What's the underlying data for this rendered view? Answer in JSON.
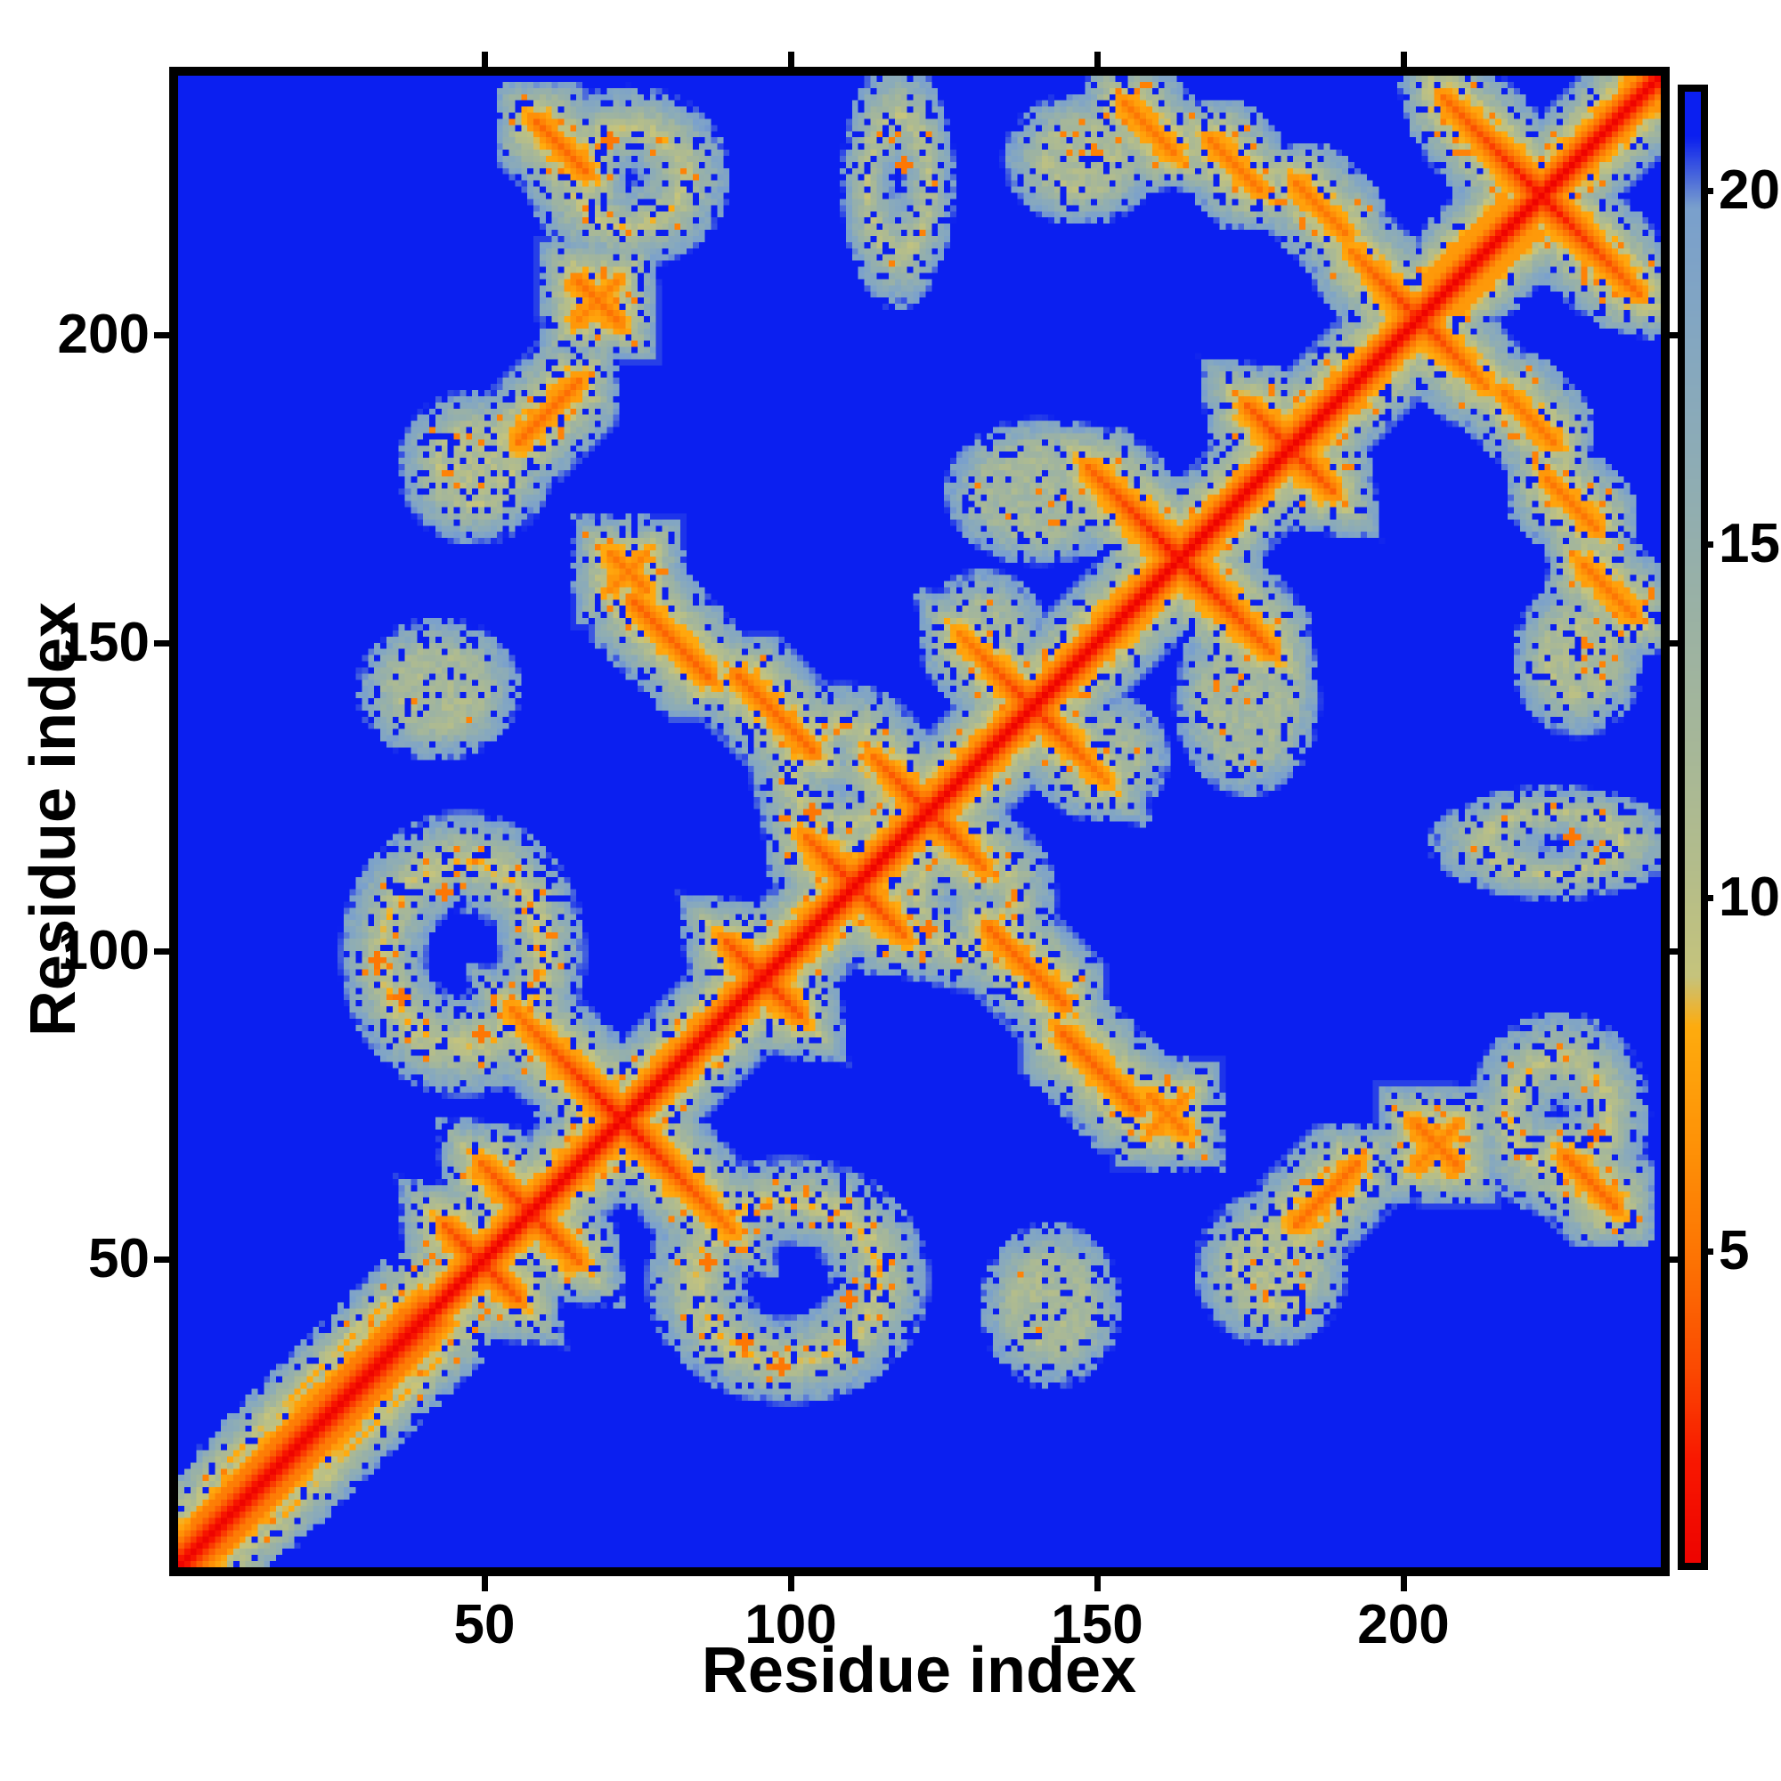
{
  "figure": {
    "xlabel": "Residue index",
    "ylabel": "Residue index",
    "x_ticks": [
      "50",
      "100",
      "150",
      "200"
    ],
    "y_ticks": [
      "50",
      "100",
      "150",
      "200"
    ],
    "colorbar_ticks": [
      "5",
      "10",
      "15",
      "20"
    ]
  },
  "chart_data": {
    "type": "heatmap",
    "title": "",
    "xlabel": "Residue index",
    "ylabel": "Residue index",
    "x_range": [
      1,
      242
    ],
    "y_range": [
      1,
      242
    ],
    "x_ticks": [
      50,
      100,
      150,
      200
    ],
    "y_ticks": [
      50,
      100,
      150,
      200
    ],
    "grid": false,
    "legend_position": "colorbar-right",
    "colorbar": {
      "ticks": [
        5,
        10,
        15,
        20
      ],
      "vmin": 0.8,
      "vmax": 21.4,
      "orientation": "vertical"
    },
    "colormap_stops": [
      [
        0.8,
        "#ee0400"
      ],
      [
        2.2,
        "#f91800"
      ],
      [
        3.5,
        "#fb4a02"
      ],
      [
        5.0,
        "#fd7304"
      ],
      [
        6.5,
        "#fe9007"
      ],
      [
        8.3,
        "#ffac0e"
      ],
      [
        9.0,
        "#c6c47c"
      ],
      [
        10.5,
        "#b4bd8b"
      ],
      [
        12.0,
        "#a8b897"
      ],
      [
        14.0,
        "#9bb2a4"
      ],
      [
        16.0,
        "#8fadb4"
      ],
      [
        18.0,
        "#84a7c1"
      ],
      [
        19.8,
        "#7aa0cd"
      ],
      [
        20.8,
        "#0b1ff0"
      ],
      [
        22.0,
        "#0b1ff0"
      ]
    ],
    "background_color": "#0b1ff0",
    "description": "Symmetric residue-residue distance matrix of a ~242-residue protein. Red main diagonal (self-distance ~0) with orange/khaki near-diagonal band, anti-diagonal X-shaped hairpin crossings along the diagonal, off-diagonal anti-parallel contact streaks, speckled grey contact rings/loops, on a uniform far-distance blue background.",
    "matrix_model": {
      "n_residues": 242,
      "diagonal": {
        "core_value": 0.8,
        "slope": 1.5,
        "wide_region": [
          0,
          40
        ],
        "wide_slope": 1.15,
        "max_band": 14
      },
      "satellite_parallels": [
        {
          "from": 2,
          "to": 36,
          "offset": 4.5,
          "core": 4.8
        },
        {
          "from": 3,
          "to": 33,
          "offset": 9.0,
          "core": 8.8
        },
        {
          "from": 203,
          "to": 216,
          "offset": 5.5,
          "core": 6.3
        }
      ],
      "diagonal_crossings": [
        {
          "c": 49,
          "arm": 6
        },
        {
          "c": 57,
          "arm": 8
        },
        {
          "c": 72,
          "arm": 18
        },
        {
          "c": 95,
          "arm": 6
        },
        {
          "c": 110,
          "arm": 8
        },
        {
          "c": 122,
          "arm": 9
        },
        {
          "c": 139,
          "arm": 12
        },
        {
          "c": 163,
          "arm": 15
        },
        {
          "c": 181,
          "arm": 7
        },
        {
          "c": 202,
          "arm": 11
        },
        {
          "c": 222,
          "arm": 16
        }
      ],
      "anti_segments": [
        [
          62,
          230,
          6,
          4.6
        ],
        [
          158,
          233,
          6,
          5.2
        ],
        [
          172,
          227,
          6,
          5.2
        ],
        [
          186,
          220,
          6,
          5.2
        ],
        [
          80,
          150,
          9,
          4.4
        ],
        [
          97,
          138,
          9,
          4.6
        ],
        [
          174,
          115,
          7,
          5.0
        ],
        [
          190,
          58,
          8,
          5.0
        ],
        [
          227,
          56,
          4,
          5.4
        ],
        [
          68,
          205,
          5,
          5.0
        ],
        [
          73,
          161,
          4,
          5.2
        ]
      ],
      "para_segments": [
        [
          60,
          187,
          7,
          4.8
        ],
        [
          68,
          205,
          5,
          5.8
        ],
        [
          73,
          161,
          4,
          5.8
        ]
      ],
      "rings": [
        {
          "c": [
            46,
            99
          ],
          "ax": 13,
          "ay": 15,
          "core": 9.0,
          "dots": [
            [
              32,
              98
            ],
            [
              43,
              109
            ],
            [
              49,
              86
            ],
            [
              36,
              92
            ]
          ]
        },
        {
          "c": [
            183,
            73
          ],
          "ax": 12,
          "ay": 11,
          "core": 9.2,
          "dots": [
            [
              190,
              62
            ],
            [
              175,
              80
            ],
            [
              192,
              78
            ]
          ]
        },
        {
          "c": [
            226,
            74
          ],
          "ax": 9,
          "ay": 9,
          "core": 9.4,
          "dots": [
            [
              233,
              70
            ],
            [
              228,
              64
            ]
          ]
        },
        {
          "c": [
            73,
            225
          ],
          "ax": 9,
          "ay": 8,
          "core": 9.6,
          "dots": [
            [
              70,
              231
            ]
          ]
        },
        {
          "c": [
            117,
            224
          ],
          "ax": 5,
          "ay": 11,
          "core": 10.2,
          "dots": [
            [
              118,
              227
            ]
          ]
        },
        {
          "c": [
            108,
            128
          ],
          "ax": 8,
          "ay": 8,
          "core": 10.0,
          "dots": [
            [
              103,
              122
            ]
          ]
        }
      ],
      "blobs": [
        [
          42,
          142,
          7,
          6,
          11.5
        ],
        [
          48,
          178,
          6,
          6,
          10.5
        ],
        [
          140,
          174,
          9,
          7,
          12.0
        ],
        [
          131,
          151,
          5,
          5,
          12.5
        ],
        [
          224,
          177,
          14,
          10,
          10.6
        ],
        [
          236,
          198,
          7,
          9,
          10.6
        ],
        [
          180,
          46,
          6,
          7,
          10.8
        ],
        [
          147,
          228,
          6,
          5,
          11.0
        ],
        [
          214,
          114,
          8,
          6,
          11.5
        ]
      ]
    }
  }
}
